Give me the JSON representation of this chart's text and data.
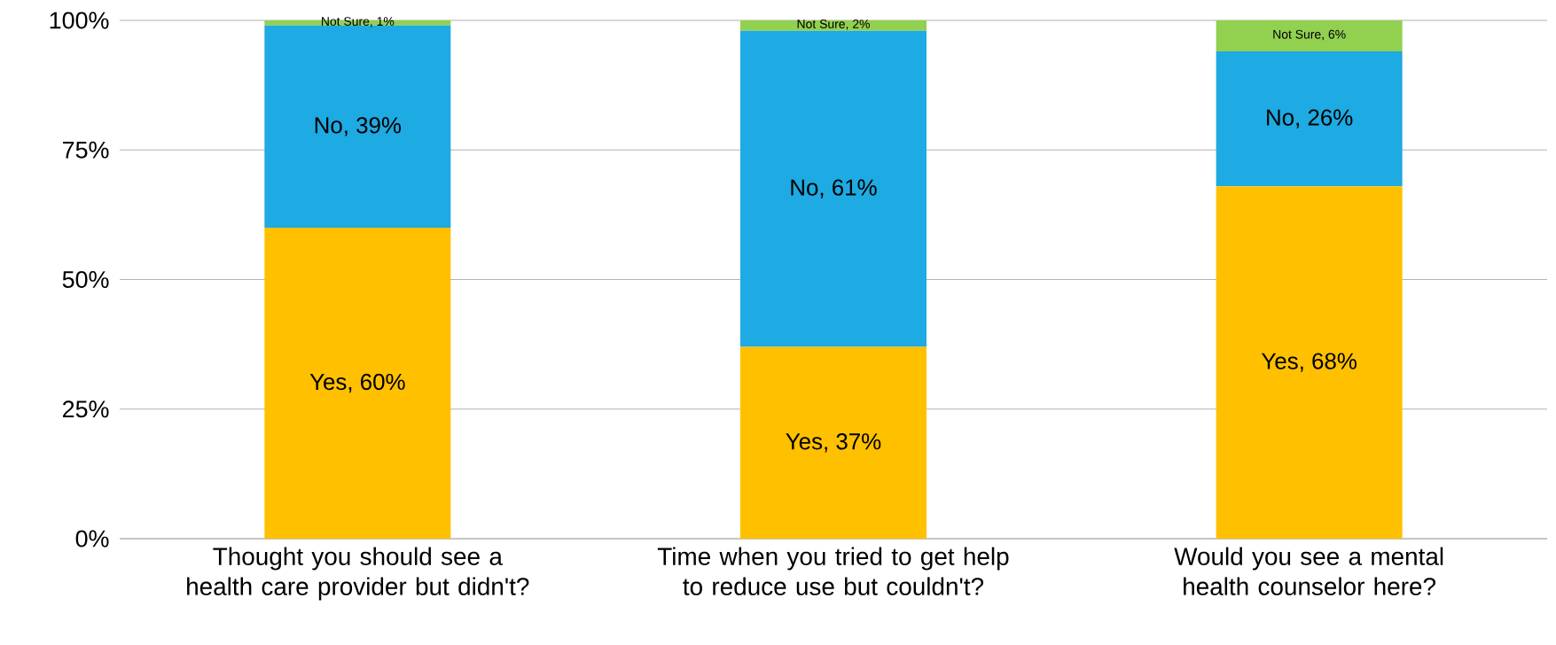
{
  "chart_data": {
    "type": "bar",
    "stacked": true,
    "categories": [
      "Thought you should see a health care provider but didn't?",
      "Time when you tried to get help to reduce use but couldn't?",
      "Would you see a mental health counselor here?"
    ],
    "series": [
      {
        "color": "#ffc000",
        "values": [
          60,
          37,
          68
        ],
        "value_labels": [
          "Yes, 60%",
          "Yes, 37%",
          "Yes, 68%"
        ]
      },
      {
        "color": "#1eaae2",
        "values": [
          39,
          61,
          26
        ],
        "value_labels": [
          "No, 39%",
          "No, 61%",
          "No, 26%"
        ]
      },
      {
        "color": "#92d050",
        "values": [
          1,
          2,
          6
        ],
        "value_labels": [
          "Not Sure, 1%",
          "Not Sure, 2%",
          "Not Sure, 6%"
        ]
      }
    ],
    "ylim": [
      0,
      100
    ],
    "yticks": [
      {
        "value": 0,
        "label": "0%"
      },
      {
        "value": 25,
        "label": "25%"
      },
      {
        "value": 50,
        "label": "50%"
      },
      {
        "value": 75,
        "label": "75%"
      },
      {
        "value": 100,
        "label": "100%"
      }
    ],
    "grid": "y"
  }
}
